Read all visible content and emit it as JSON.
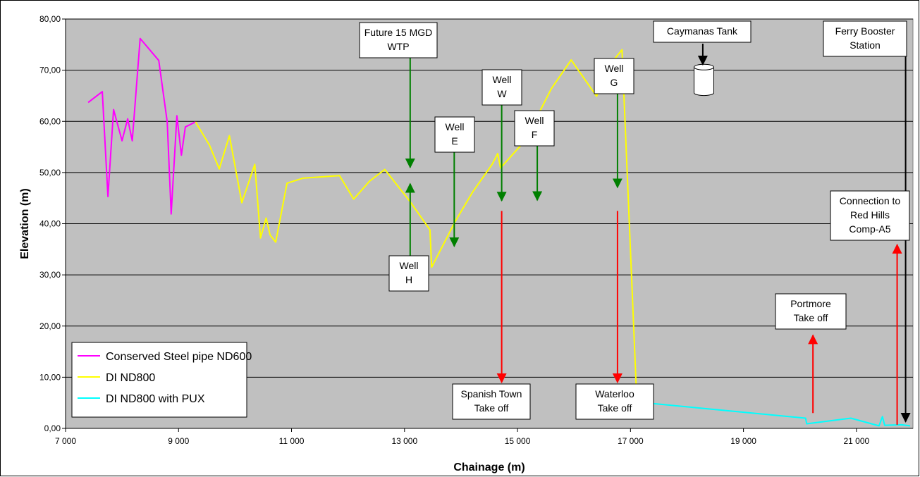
{
  "chart_data": {
    "type": "line",
    "xlabel": "Chainage (m)",
    "ylabel": "Elevation (m)",
    "xlim": [
      7000,
      22000
    ],
    "ylim": [
      0,
      80
    ],
    "x_ticks": [
      7000,
      9000,
      11000,
      13000,
      15000,
      17000,
      19000,
      21000
    ],
    "x_tick_labels": [
      "7 000",
      "9 000",
      "11 000",
      "13 000",
      "15 000",
      "17 000",
      "19 000",
      "21 000"
    ],
    "y_ticks": [
      0,
      10,
      20,
      30,
      40,
      50,
      60,
      70,
      80
    ],
    "y_tick_labels": [
      "0,00",
      "10,00",
      "20,00",
      "30,00",
      "40,00",
      "50,00",
      "60,00",
      "70,00",
      "80,00"
    ],
    "grid": "horizontal",
    "plot_background": "#c0c0c0",
    "legend_position": "bottom-left",
    "series": [
      {
        "name": "Conserved Steel pipe ND600",
        "color": "#ff00ff",
        "points": [
          [
            7400,
            63.7
          ],
          [
            7650,
            65.8
          ],
          [
            7750,
            45.3
          ],
          [
            7850,
            62.3
          ],
          [
            8000,
            56.2
          ],
          [
            8100,
            60.5
          ],
          [
            8180,
            56.2
          ],
          [
            8320,
            76.2
          ],
          [
            8650,
            71.9
          ],
          [
            8800,
            59.9
          ],
          [
            8870,
            41.9
          ],
          [
            8970,
            61.1
          ],
          [
            9050,
            53.4
          ],
          [
            9120,
            58.9
          ],
          [
            9300,
            59.9
          ]
        ]
      },
      {
        "name": "DI ND800",
        "color": "#ffff00",
        "points": [
          [
            9300,
            59.9
          ],
          [
            9550,
            55.3
          ],
          [
            9720,
            50.7
          ],
          [
            9900,
            57.2
          ],
          [
            10120,
            44.1
          ],
          [
            10350,
            51.6
          ],
          [
            10450,
            37.2
          ],
          [
            10550,
            41.1
          ],
          [
            10620,
            37.8
          ],
          [
            10720,
            36.4
          ],
          [
            10920,
            47.9
          ],
          [
            11200,
            48.9
          ],
          [
            11850,
            49.4
          ],
          [
            12100,
            44.8
          ],
          [
            12380,
            48.3
          ],
          [
            12650,
            50.6
          ],
          [
            13100,
            44.3
          ],
          [
            13450,
            38.8
          ],
          [
            13480,
            31.5
          ],
          [
            13900,
            40.5
          ],
          [
            14200,
            46.1
          ],
          [
            14550,
            51.6
          ],
          [
            14650,
            53.7
          ],
          [
            14700,
            50.9
          ],
          [
            15050,
            55.2
          ],
          [
            15350,
            61.0
          ],
          [
            15600,
            66.4
          ],
          [
            15950,
            72.0
          ],
          [
            16400,
            64.9
          ],
          [
            16600,
            70.6
          ],
          [
            16850,
            74.0
          ],
          [
            17100,
            8.6
          ]
        ]
      },
      {
        "name": "DI ND800 with PUX",
        "color": "#00ffff",
        "points": [
          [
            17100,
            8.6
          ],
          [
            17350,
            4.9
          ],
          [
            20100,
            2.0
          ],
          [
            20120,
            0.9
          ],
          [
            20900,
            2.0
          ],
          [
            21400,
            0.5
          ],
          [
            21460,
            2.3
          ],
          [
            21500,
            0.6
          ],
          [
            21800,
            0.7
          ],
          [
            21950,
            0.5
          ]
        ]
      }
    ],
    "annotations": [
      {
        "lines": [
          "Future 15 MGD",
          "WTP"
        ],
        "target": [
          13100,
          51.0
        ],
        "color": "#007f00"
      },
      {
        "lines": [
          "Well",
          "W"
        ],
        "target": [
          14720,
          44.5
        ],
        "color": "#007f00"
      },
      {
        "lines": [
          "Well",
          "E"
        ],
        "target": [
          13880,
          35.6
        ],
        "color": "#007f00"
      },
      {
        "lines": [
          "Well",
          "F"
        ],
        "target": [
          15350,
          44.6
        ],
        "color": "#007f00"
      },
      {
        "lines": [
          "Well",
          "G"
        ],
        "target": [
          16770,
          47.1
        ],
        "color": "#007f00"
      },
      {
        "lines": [
          "Well",
          "H"
        ],
        "target": [
          13100,
          47.8
        ],
        "color": "#007f00"
      },
      {
        "lines": [
          "Caymanas Tank"
        ],
        "target": [
          18280,
          71.1
        ],
        "color": "#000000"
      },
      {
        "lines": [
          "Ferry Booster",
          "Station"
        ],
        "target": [
          21870,
          1.3
        ],
        "color": "#000000"
      },
      {
        "lines": [
          "Spanish Town",
          "Take off"
        ],
        "target": [
          14720,
          9.0
        ],
        "color": "#ff0000"
      },
      {
        "lines": [
          "Waterloo",
          "Take off"
        ],
        "target": [
          16770,
          9.0
        ],
        "color": "#ff0000"
      },
      {
        "lines": [
          "Portmore",
          "Take off"
        ],
        "target": [
          20230,
          18.2
        ],
        "color": "#ff0000"
      },
      {
        "lines": [
          "Connection to",
          "Red Hills",
          "Comp-A5"
        ],
        "target": [
          21720,
          35.9
        ],
        "color": "#ff0000"
      }
    ]
  }
}
